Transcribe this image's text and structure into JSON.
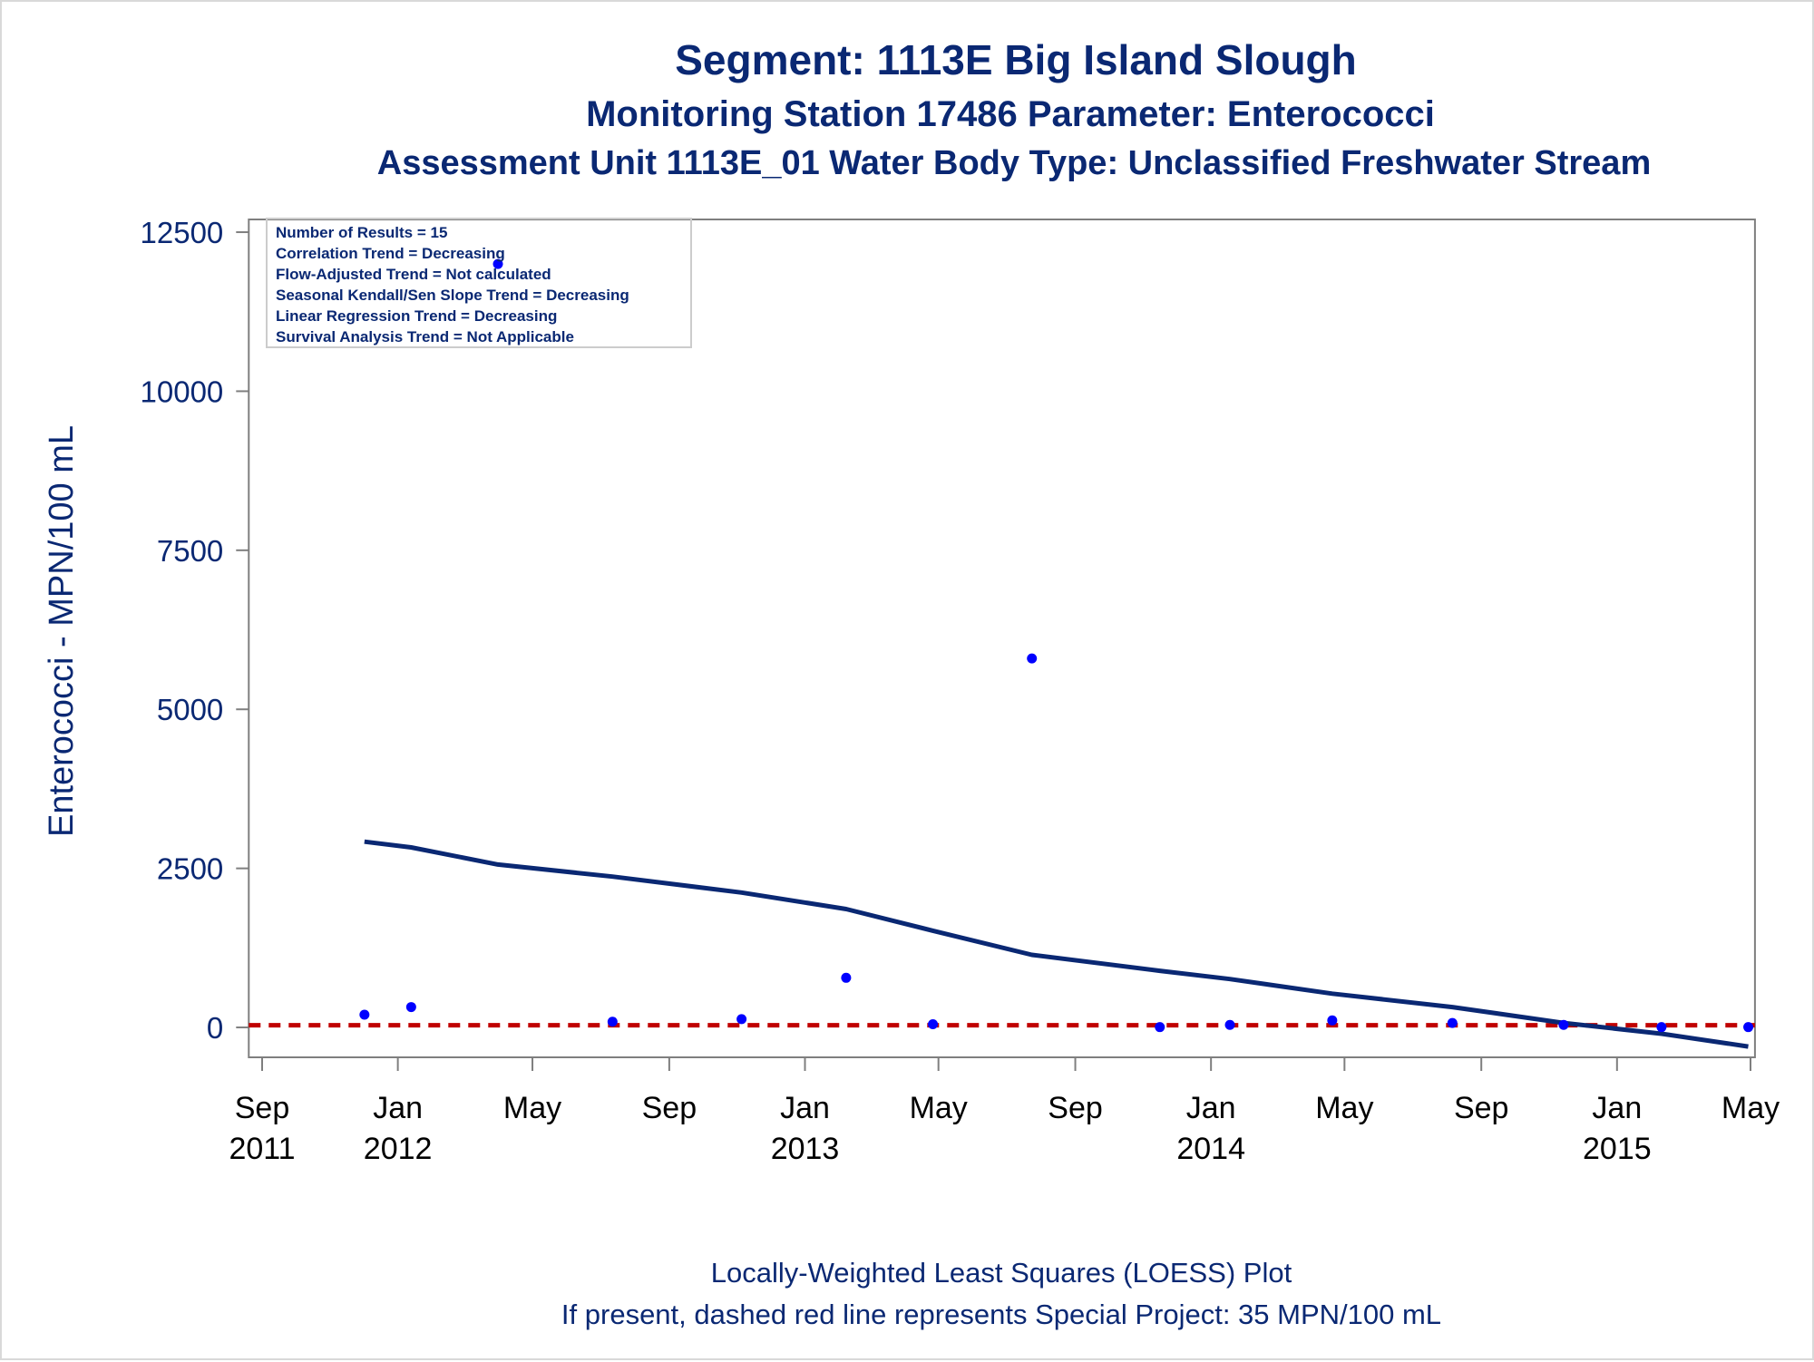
{
  "titles": {
    "line1": "Segment: 1113E  Big Island Slough",
    "line2": "Monitoring Station 17486 Parameter: Enterococci",
    "line3": "Assessment Unit 1113E_01   Water Body Type: Unclassified Freshwater Stream"
  },
  "stats_box": [
    "Number of Results = 15",
    "Correlation Trend = Decreasing",
    "Flow-Adjusted Trend = Not calculated",
    "Seasonal Kendall/Sen Slope Trend = Decreasing",
    "Linear Regression Trend = Decreasing",
    "Survival Analysis Trend = Not Applicable"
  ],
  "footnotes": {
    "line1": "Locally-Weighted Least Squares (LOESS) Plot",
    "line2": "If present, dashed red line represents Special Project: 35 MPN/100 mL"
  },
  "colors": {
    "title": "#0a2873",
    "points": "#0000ff",
    "loess": "#0a2873",
    "reference": "#c00000",
    "axis": "#7f7f7f"
  },
  "chart_data": {
    "type": "scatter",
    "ylabel": "Enterococci - MPN/100 mL",
    "ylim": [
      -470,
      12700
    ],
    "xlim": [
      "2011-08-20",
      "2015-05-05"
    ],
    "yticks": [
      0,
      2500,
      5000,
      7500,
      10000,
      12500
    ],
    "xticks": [
      {
        "date": "2011-09-01",
        "label": [
          "Sep",
          "2011"
        ]
      },
      {
        "date": "2012-01-01",
        "label": [
          "Jan",
          "2012"
        ]
      },
      {
        "date": "2012-05-01",
        "label": [
          "May",
          ""
        ]
      },
      {
        "date": "2012-09-01",
        "label": [
          "Sep",
          ""
        ]
      },
      {
        "date": "2013-01-01",
        "label": [
          "Jan",
          "2013"
        ]
      },
      {
        "date": "2013-05-01",
        "label": [
          "May",
          ""
        ]
      },
      {
        "date": "2013-09-01",
        "label": [
          "Sep",
          ""
        ]
      },
      {
        "date": "2014-01-01",
        "label": [
          "Jan",
          "2014"
        ]
      },
      {
        "date": "2014-05-01",
        "label": [
          "May",
          ""
        ]
      },
      {
        "date": "2014-09-01",
        "label": [
          "Sep",
          ""
        ]
      },
      {
        "date": "2015-01-01",
        "label": [
          "Jan",
          "2015"
        ]
      },
      {
        "date": "2015-05-01",
        "label": [
          "May",
          ""
        ]
      }
    ],
    "grid": false,
    "legend": "top-left",
    "series": [
      {
        "type": "scatter",
        "points": [
          {
            "x": "2011-12-02",
            "y": 200
          },
          {
            "x": "2012-01-13",
            "y": 320
          },
          {
            "x": "2012-03-31",
            "y": 12000
          },
          {
            "x": "2012-07-12",
            "y": 90
          },
          {
            "x": "2012-11-05",
            "y": 130
          },
          {
            "x": "2013-02-07",
            "y": 780
          },
          {
            "x": "2013-04-26",
            "y": 50
          },
          {
            "x": "2013-07-24",
            "y": 5800
          },
          {
            "x": "2013-11-16",
            "y": 5
          },
          {
            "x": "2014-01-18",
            "y": 40
          },
          {
            "x": "2014-04-20",
            "y": 110
          },
          {
            "x": "2014-08-06",
            "y": 70
          },
          {
            "x": "2014-11-14",
            "y": 40
          },
          {
            "x": "2015-02-10",
            "y": 5
          },
          {
            "x": "2015-04-29",
            "y": 5
          }
        ]
      },
      {
        "type": "line",
        "style": "solid",
        "points": [
          {
            "x": "2011-12-02",
            "y": 2920
          },
          {
            "x": "2012-01-13",
            "y": 2830
          },
          {
            "x": "2012-03-31",
            "y": 2560
          },
          {
            "x": "2012-07-12",
            "y": 2370
          },
          {
            "x": "2012-11-05",
            "y": 2120
          },
          {
            "x": "2013-02-07",
            "y": 1860
          },
          {
            "x": "2013-04-26",
            "y": 1520
          },
          {
            "x": "2013-07-24",
            "y": 1140
          },
          {
            "x": "2013-11-16",
            "y": 890
          },
          {
            "x": "2014-01-18",
            "y": 760
          },
          {
            "x": "2014-04-20",
            "y": 530
          },
          {
            "x": "2014-08-06",
            "y": 320
          },
          {
            "x": "2014-11-14",
            "y": 70
          },
          {
            "x": "2015-02-10",
            "y": -100
          },
          {
            "x": "2015-04-29",
            "y": -300
          }
        ]
      },
      {
        "type": "reference-line",
        "style": "dashed",
        "y": 35
      }
    ]
  }
}
